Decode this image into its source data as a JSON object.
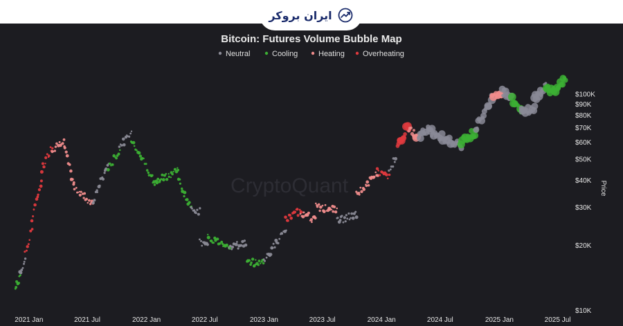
{
  "header": {
    "logo_text": "ایران بروکر",
    "logo_icon": "trend-up-icon"
  },
  "chart_data": {
    "type": "scatter",
    "title": "Bitcoin: Futures Volume Bubble Map",
    "ylabel": "Price",
    "watermark": "CryptoQuant",
    "legend_position": "top-center",
    "y_scale": "log",
    "ylim": [
      10000,
      130000
    ],
    "xlim": [
      "2020-11-15",
      "2025-08-01"
    ],
    "y_ticks": [
      {
        "value": 10000,
        "label": "$10K"
      },
      {
        "value": 20000,
        "label": "$20K"
      },
      {
        "value": 30000,
        "label": "$30K"
      },
      {
        "value": 40000,
        "label": "$40K"
      },
      {
        "value": 50000,
        "label": "$50K"
      },
      {
        "value": 60000,
        "label": "$60K"
      },
      {
        "value": 70000,
        "label": "$70K"
      },
      {
        "value": 80000,
        "label": "$80K"
      },
      {
        "value": 90000,
        "label": "$90K"
      },
      {
        "value": 100000,
        "label": "$100K"
      }
    ],
    "x_ticks": [
      {
        "date": "2021-01-01",
        "label": "2021 Jan"
      },
      {
        "date": "2021-07-01",
        "label": "2021 Jul"
      },
      {
        "date": "2022-01-01",
        "label": "2022 Jan"
      },
      {
        "date": "2022-07-01",
        "label": "2022 Jul"
      },
      {
        "date": "2023-01-01",
        "label": "2023 Jan"
      },
      {
        "date": "2023-07-01",
        "label": "2023 Jul"
      },
      {
        "date": "2024-01-01",
        "label": "2024 Jan"
      },
      {
        "date": "2024-07-01",
        "label": "2024 Jul"
      },
      {
        "date": "2025-01-01",
        "label": "2025 Jan"
      },
      {
        "date": "2025-07-01",
        "label": "2025 Jul"
      }
    ],
    "series": [
      {
        "name": "Neutral",
        "color": "#8a8a96"
      },
      {
        "name": "Cooling",
        "color": "#3cb034"
      },
      {
        "name": "Heating",
        "color": "#f08c8c"
      },
      {
        "name": "Overheating",
        "color": "#e0393e"
      }
    ],
    "segments": [
      {
        "start": "2020-11-20",
        "end": "2020-12-05",
        "from": 12500,
        "to": 14500,
        "status": "Cooling"
      },
      {
        "start": "2020-12-05",
        "end": "2020-12-20",
        "from": 14500,
        "to": 17500,
        "status": "Neutral"
      },
      {
        "start": "2020-12-20",
        "end": "2021-01-10",
        "from": 18000,
        "to": 24000,
        "status": "Overheating"
      },
      {
        "start": "2021-01-10",
        "end": "2021-02-10",
        "from": 26000,
        "to": 40000,
        "status": "Overheating"
      },
      {
        "start": "2021-02-10",
        "end": "2021-03-15",
        "from": 45000,
        "to": 58000,
        "status": "Overheating"
      },
      {
        "start": "2021-03-15",
        "end": "2021-04-20",
        "from": 55000,
        "to": 62000,
        "status": "Heating"
      },
      {
        "start": "2021-04-20",
        "end": "2021-05-20",
        "from": 57000,
        "to": 38000,
        "status": "Heating"
      },
      {
        "start": "2021-05-20",
        "end": "2021-07-20",
        "from": 37000,
        "to": 31000,
        "status": "Heating"
      },
      {
        "start": "2021-07-20",
        "end": "2021-09-05",
        "from": 32000,
        "to": 48000,
        "status": "Neutral"
      },
      {
        "start": "2021-09-05",
        "end": "2021-10-10",
        "from": 45000,
        "to": 55000,
        "status": "Cooling"
      },
      {
        "start": "2021-10-10",
        "end": "2021-11-15",
        "from": 57000,
        "to": 66000,
        "status": "Neutral"
      },
      {
        "start": "2021-11-15",
        "end": "2022-01-20",
        "from": 62000,
        "to": 41000,
        "status": "Cooling"
      },
      {
        "start": "2022-01-20",
        "end": "2022-04-10",
        "from": 38000,
        "to": 45000,
        "status": "Cooling"
      },
      {
        "start": "2022-04-10",
        "end": "2022-05-20",
        "from": 40000,
        "to": 29000,
        "status": "Cooling"
      },
      {
        "start": "2022-05-20",
        "end": "2022-06-15",
        "from": 30000,
        "to": 28500,
        "status": "Neutral"
      },
      {
        "start": "2022-06-15",
        "end": "2022-07-10",
        "from": 21000,
        "to": 19500,
        "status": "Neutral"
      },
      {
        "start": "2022-07-10",
        "end": "2022-09-15",
        "from": 21500,
        "to": 20000,
        "status": "Cooling"
      },
      {
        "start": "2022-09-15",
        "end": "2022-11-05",
        "from": 19500,
        "to": 20500,
        "status": "Neutral"
      },
      {
        "start": "2022-11-10",
        "end": "2022-12-31",
        "from": 16500,
        "to": 16800,
        "status": "Cooling"
      },
      {
        "start": "2023-01-01",
        "end": "2023-03-10",
        "from": 17000,
        "to": 23500,
        "status": "Neutral"
      },
      {
        "start": "2023-03-10",
        "end": "2023-04-25",
        "from": 26000,
        "to": 29000,
        "status": "Overheating"
      },
      {
        "start": "2023-04-25",
        "end": "2023-06-10",
        "from": 28500,
        "to": 26000,
        "status": "Heating"
      },
      {
        "start": "2023-06-10",
        "end": "2023-08-15",
        "from": 30000,
        "to": 29000,
        "status": "Heating"
      },
      {
        "start": "2023-08-15",
        "end": "2023-10-15",
        "from": 26000,
        "to": 27500,
        "status": "Neutral"
      },
      {
        "start": "2023-10-15",
        "end": "2023-12-20",
        "from": 34000,
        "to": 43000,
        "status": "Heating"
      },
      {
        "start": "2023-12-20",
        "end": "2024-01-25",
        "from": 44000,
        "to": 41000,
        "status": "Overheating"
      },
      {
        "start": "2024-01-25",
        "end": "2024-02-15",
        "from": 43000,
        "to": 52000,
        "status": "Neutral"
      },
      {
        "start": "2024-02-20",
        "end": "2024-03-25",
        "from": 58000,
        "to": 71000,
        "status": "Overheating"
      },
      {
        "start": "2024-03-25",
        "end": "2024-04-25",
        "from": 69000,
        "to": 63000,
        "status": "Heating"
      },
      {
        "start": "2024-04-25",
        "end": "2024-06-05",
        "from": 64000,
        "to": 69000,
        "status": "Neutral"
      },
      {
        "start": "2024-06-05",
        "end": "2024-09-05",
        "from": 66000,
        "to": 57000,
        "status": "Neutral"
      },
      {
        "start": "2024-09-05",
        "end": "2024-10-20",
        "from": 60000,
        "to": 67000,
        "status": "Cooling"
      },
      {
        "start": "2024-10-20",
        "end": "2024-12-10",
        "from": 70000,
        "to": 97000,
        "status": "Neutral"
      },
      {
        "start": "2024-12-10",
        "end": "2025-01-10",
        "from": 96000,
        "to": 98000,
        "status": "Heating"
      },
      {
        "start": "2025-01-10",
        "end": "2025-02-10",
        "from": 103000,
        "to": 96000,
        "status": "Neutral"
      },
      {
        "start": "2025-02-10",
        "end": "2025-03-10",
        "from": 95000,
        "to": 83000,
        "status": "Cooling"
      },
      {
        "start": "2025-03-10",
        "end": "2025-04-20",
        "from": 84000,
        "to": 85000,
        "status": "Neutral"
      },
      {
        "start": "2025-04-20",
        "end": "2025-05-25",
        "from": 95000,
        "to": 108000,
        "status": "Neutral"
      },
      {
        "start": "2025-05-25",
        "end": "2025-06-25",
        "from": 105000,
        "to": 104000,
        "status": "Cooling"
      },
      {
        "start": "2025-06-25",
        "end": "2025-07-25",
        "from": 108000,
        "to": 118000,
        "status": "Cooling"
      }
    ]
  }
}
